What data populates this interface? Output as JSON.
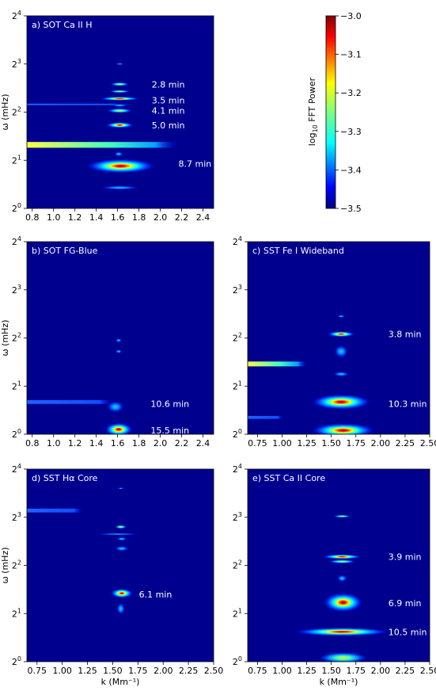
{
  "figure": {
    "colorbar": {
      "label_base": "log",
      "label_sub": "10",
      "label_rest": " FFT Power",
      "ticks": [
        "−3.0",
        "−3.1",
        "−3.2",
        "−3.3",
        "−3.4",
        "−3.5"
      ],
      "range": [
        -3.5,
        -3.0
      ],
      "colormap": "jet"
    },
    "ylabel": "ω (mHz)",
    "xlabel": "k (Mm⁻¹)",
    "ytick_base": "2",
    "ytick_exps": [
      "0",
      "1",
      "2",
      "3",
      "4"
    ]
  },
  "chart_data": [
    {
      "type": "heatmap",
      "title": "a) SOT Ca II H",
      "x_range": [
        0.75,
        2.5
      ],
      "xticks": [
        "0.8",
        "1.0",
        "1.2",
        "1.4",
        "1.6",
        "1.8",
        "2.0",
        "2.2",
        "2.4"
      ],
      "xtick_values": [
        0.8,
        1.0,
        1.2,
        1.4,
        1.6,
        1.8,
        2.0,
        2.2,
        2.4
      ],
      "y_log2_range": [
        0,
        4
      ],
      "annotations": [
        {
          "text": "2.8 min",
          "k": 1.92,
          "log2_omega": 2.58
        },
        {
          "text": "3.5 min",
          "k": 1.92,
          "log2_omega": 2.25
        },
        {
          "text": "4.1 min",
          "k": 1.92,
          "log2_omega": 2.03
        },
        {
          "text": "5.0 min",
          "k": 1.92,
          "log2_omega": 1.73
        },
        {
          "text": "8.7 min",
          "k": 2.17,
          "log2_omega": 0.93
        }
      ]
    },
    {
      "type": "heatmap",
      "title": "b) SOT FG-Blue",
      "x_range": [
        0.75,
        2.5
      ],
      "xticks": [
        "0.8",
        "1.0",
        "1.2",
        "1.4",
        "1.6",
        "1.8",
        "2.0",
        "2.2",
        "2.4"
      ],
      "xtick_values": [
        0.8,
        1.0,
        1.2,
        1.4,
        1.6,
        1.8,
        2.0,
        2.2,
        2.4
      ],
      "y_log2_range": [
        0,
        4
      ],
      "annotations": [
        {
          "text": "10.6 min",
          "k": 1.91,
          "log2_omega": 0.63
        },
        {
          "text": "15.5 min",
          "k": 1.91,
          "log2_omega": 0.08
        }
      ]
    },
    {
      "type": "heatmap",
      "title": "c) SST Fe I Wideband",
      "x_range": [
        0.65,
        2.5
      ],
      "xticks": [
        "0.75",
        "1.00",
        "1.25",
        "1.50",
        "1.75",
        "2.00",
        "2.25",
        "2.50"
      ],
      "xtick_values": [
        0.75,
        1.0,
        1.25,
        1.5,
        1.75,
        2.0,
        2.25,
        2.5
      ],
      "y_log2_range": [
        0,
        4
      ],
      "annotations": [
        {
          "text": "3.8 min",
          "k": 2.08,
          "log2_omega": 2.08
        },
        {
          "text": "10.3 min",
          "k": 2.08,
          "log2_omega": 0.63
        }
      ]
    },
    {
      "type": "heatmap",
      "title": "d) SST Hα Core",
      "x_range": [
        0.65,
        2.5
      ],
      "xticks": [
        "0.75",
        "1.00",
        "1.25",
        "1.50",
        "1.75",
        "2.00",
        "2.25",
        "2.50"
      ],
      "xtick_values": [
        0.75,
        1.0,
        1.25,
        1.5,
        1.75,
        2.0,
        2.25,
        2.5
      ],
      "y_log2_range": [
        0,
        4
      ],
      "annotations": [
        {
          "text": "6.1 min",
          "k": 1.76,
          "log2_omega": 1.4
        }
      ]
    },
    {
      "type": "heatmap",
      "title": "e) SST Ca II Core",
      "x_range": [
        0.65,
        2.5
      ],
      "xticks": [
        "0.75",
        "1.00",
        "1.25",
        "1.50",
        "1.75",
        "2.00",
        "2.25",
        "2.50"
      ],
      "xtick_values": [
        0.75,
        1.0,
        1.25,
        1.5,
        1.75,
        2.0,
        2.25,
        2.5
      ],
      "y_log2_range": [
        0,
        4
      ],
      "annotations": [
        {
          "text": "3.9 min",
          "k": 2.08,
          "log2_omega": 2.18
        },
        {
          "text": "6.9 min",
          "k": 2.08,
          "log2_omega": 1.22
        },
        {
          "text": "10.5 min",
          "k": 2.08,
          "log2_omega": 0.62
        }
      ]
    }
  ]
}
